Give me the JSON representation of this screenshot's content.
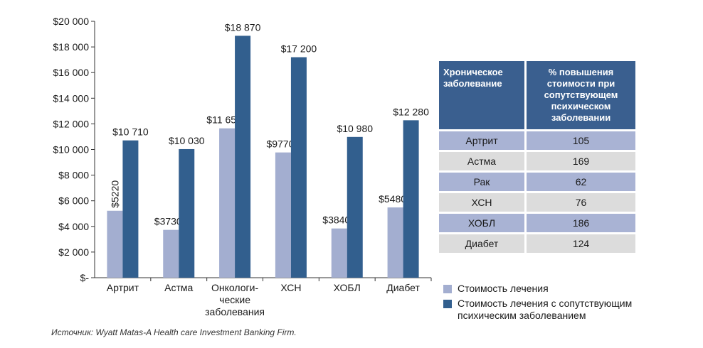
{
  "chart_data": {
    "type": "bar",
    "categories": [
      "Артрит",
      "Астма",
      "Онкологи-\nческие\nзаболевания",
      "ХСН",
      "ХОБЛ",
      "Диабет"
    ],
    "series": [
      {
        "name": "Стоимость лечения",
        "values": [
          5220,
          3730,
          11650,
          9770,
          3840,
          5480
        ],
        "labels": [
          "$5220",
          "$3730",
          "$11 650",
          "$9770",
          "$3840",
          "$5480"
        ],
        "color": "#a3aed0"
      },
      {
        "name": "Стоимость лечения с сопутствующим психическим заболеванием",
        "values": [
          10710,
          10030,
          18870,
          17200,
          10980,
          12280
        ],
        "labels": [
          "$10 710",
          "$10 030",
          "$18 870",
          "$17 200",
          "$10 980",
          "$12 280"
        ],
        "color": "#325f8e"
      }
    ],
    "ylim": [
      0,
      20000
    ],
    "yticks": [
      0,
      2000,
      4000,
      6000,
      8000,
      10000,
      12000,
      14000,
      16000,
      18000,
      20000
    ],
    "ytick_labels": [
      "$-",
      "$2 000",
      "$4 000",
      "$6 000",
      "$8 000",
      "$10 000",
      "$12 000",
      "$14 000",
      "$16 000",
      "$18 000",
      "$20 000"
    ],
    "grid": false,
    "legend_placement": "bottom-right"
  },
  "table": {
    "header": [
      "Хроническое заболевание",
      "% повышения стоимости при сопутствующем психическом заболевании"
    ],
    "rows": [
      [
        "Артрит",
        "105"
      ],
      [
        "Астма",
        "169"
      ],
      [
        "Рак",
        "62"
      ],
      [
        "ХСН",
        "76"
      ],
      [
        "ХОБЛ",
        "186"
      ],
      [
        "Диабет",
        "124"
      ]
    ]
  },
  "legend": [
    {
      "label": "Стоимость лечения",
      "color": "#a3aed0"
    },
    {
      "label": "Стоимость лечения с сопутствующим психическим заболеванием",
      "color": "#325f8e"
    }
  ],
  "source": "Источник: Wyatt Matas-A Health care Investment Banking Firm."
}
